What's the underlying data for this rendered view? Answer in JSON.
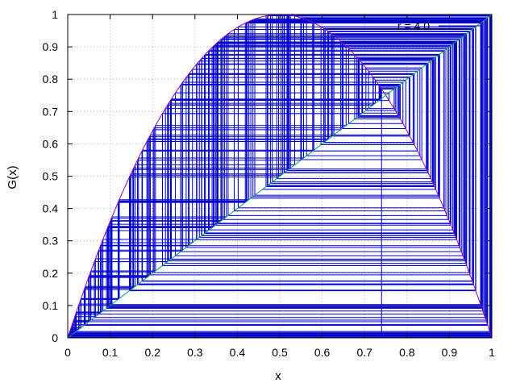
{
  "chart_data": {
    "type": "line",
    "xlabel": "x",
    "ylabel": "G(x)",
    "xlim": [
      0,
      1
    ],
    "ylim": [
      0,
      1
    ],
    "x_ticks": [
      0,
      0.1,
      0.2,
      0.3,
      0.4,
      0.5,
      0.6,
      0.7,
      0.8,
      0.9,
      1
    ],
    "x_tick_labels": [
      "0",
      "0.1",
      "0.2",
      "0.3",
      "0.4",
      "0.5",
      "0.6",
      "0.7",
      "0.8",
      "0.9",
      "1"
    ],
    "y_ticks": [
      0,
      0.1,
      0.2,
      0.3,
      0.4,
      0.5,
      0.6,
      0.7,
      0.8,
      0.9,
      1
    ],
    "y_tick_labels": [
      "0",
      "0.1",
      "0.2",
      "0.3",
      "0.4",
      "0.5",
      "0.6",
      "0.7",
      "0.8",
      "0.9",
      "1"
    ],
    "grid": true,
    "legend_position": "top-right",
    "map_parameter_r": 4.0,
    "cobweb_start_x": 0.74,
    "cobweb_steps": 300,
    "series": [
      {
        "name": "r = 4.0",
        "kind": "cobweb",
        "color": "#0000cc"
      },
      {
        "kind": "map-curve",
        "function": "r*x*(1-x)",
        "color": "#9400d3"
      },
      {
        "kind": "identity-line",
        "color": "#009e73"
      }
    ]
  }
}
